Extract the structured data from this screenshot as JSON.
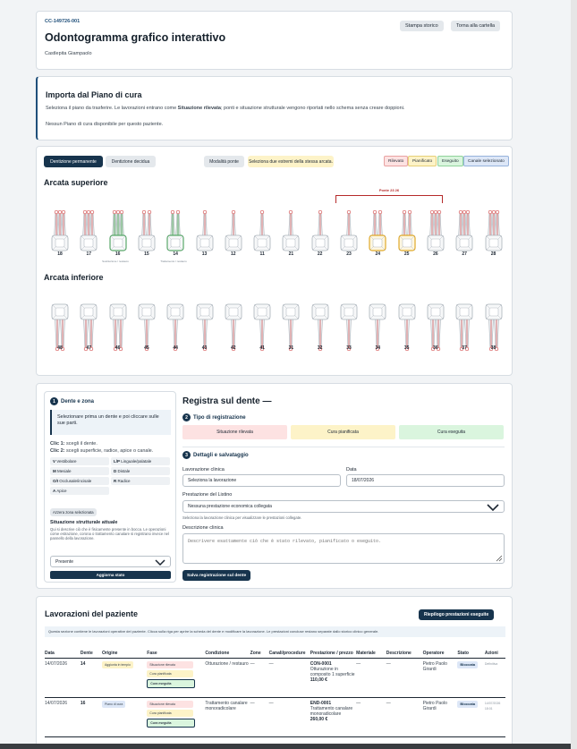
{
  "header": {
    "record_code": "CC-149726-001",
    "title": "Odontogramma grafico interattivo",
    "patient": "Castlepita Giampaolo",
    "btn_history": "Stampa storico",
    "btn_back": "Torna alla cartella"
  },
  "import": {
    "title": "Importa dal Piano di cura",
    "desc_before": "Seleziona il piano da trasferire. Le lavorazioni entrano come ",
    "desc_bold": "Situazione rilevata",
    "desc_after": "; ponti e situazione strutturale vengono riportati nello schema senza creare doppioni.",
    "empty": "Nessun Piano di cura disponibile per questo paziente."
  },
  "odontogram": {
    "tab_permanent": "Dentizione permanente",
    "tab_deciduous": "Dentizione decidua",
    "btn_bridge_mode": "Modalità ponte",
    "bridge_hint": "Seleziona due estremi della stessa arcata.",
    "legend": [
      {
        "label": "Rilevato",
        "bg": "#fde2e2",
        "border": "#e8a2a2"
      },
      {
        "label": "Pianificato",
        "bg": "#fdf3c8",
        "border": "#e6cf78"
      },
      {
        "label": "Eseguito",
        "bg": "#daf5de",
        "border": "#8fd39b"
      },
      {
        "label": "Canale selezionato",
        "bg": "#dde7f7",
        "border": "#97b3dc"
      }
    ],
    "upper_title": "Arcata superiore",
    "lower_title": "Arcata inferiore",
    "bridge_label": "Ponte 23 26",
    "upper_teeth": [
      "18",
      "17",
      "16",
      "15",
      "14",
      "13",
      "12",
      "11",
      "21",
      "22",
      "23",
      "24",
      "25",
      "26",
      "27",
      "28"
    ],
    "lower_teeth": [
      "48",
      "47",
      "46",
      "45",
      "44",
      "43",
      "42",
      "41",
      "31",
      "32",
      "33",
      "34",
      "35",
      "36",
      "37",
      "38"
    ],
    "upper_roots": [
      3,
      3,
      3,
      2,
      2,
      1,
      1,
      1,
      1,
      1,
      1,
      2,
      2,
      3,
      3,
      3
    ],
    "lower_roots": [
      2,
      2,
      2,
      1,
      1,
      1,
      1,
      1,
      1,
      1,
      1,
      1,
      1,
      2,
      2,
      2
    ],
    "upper_states": [
      "",
      "",
      "green",
      "",
      "green",
      "",
      "",
      "",
      "",
      "",
      "",
      "yellow",
      "yellow",
      "",
      "",
      ""
    ],
    "tooth_note_16": "Sostituzione / restauro",
    "tooth_note_14": "Trattamento / restauro"
  },
  "left_panel": {
    "title": "Dente e zona",
    "info": "Selezionare prima un dente e poi cliccare sulle sue parti.",
    "click1_label": "Clic 1:",
    "click1_text": " scegli il dente.",
    "click2_label": "Clic 2:",
    "click2_text": " scegli superficie, radice, apice o canale.",
    "zones": [
      {
        "key": "V",
        "label": "Vestibolare"
      },
      {
        "key": "L/P",
        "label": "Linguale/palatale"
      },
      {
        "key": "M",
        "label": "Mesiale"
      },
      {
        "key": "D",
        "label": "Distale"
      },
      {
        "key": "O/I",
        "label": "Occlusale/incisale"
      },
      {
        "key": "R",
        "label": "Radice"
      },
      {
        "key": "A",
        "label": "Apice"
      }
    ],
    "btn_reset_zone": "Azzera zona selezionata",
    "structural_title": "Situazione strutturale attuale",
    "structural_desc": "Qui si descrive ciò che è fisicamente presente in bocca. Le operazioni come estrazione, corona o trattamento canalare si registrano invece nel pannello della lavorazione.",
    "structural_value": "Presente",
    "btn_update": "Aggiorna stato"
  },
  "register": {
    "title": "Registra sul dente —",
    "section2": "Tipo di registrazione",
    "types": [
      {
        "label": "Situazione rilevata",
        "bg": "#fde2e2"
      },
      {
        "label": "Cura pianificata",
        "bg": "#fdf3c8"
      },
      {
        "label": "Cura eseguita",
        "bg": "#daf5de"
      }
    ],
    "section3": "Dettagli e salvataggio",
    "lbl_work": "Lavorazione clinica",
    "work_value": "Seleziona la lavorazione",
    "lbl_date": "Data",
    "date_value": "18/07/2026",
    "lbl_service": "Prestazione del Listino",
    "service_value": "Nessuna prestazione economica collegata",
    "service_hint": "Seleziona la lavorazione clinica per visualizzare le prestazioni collegate.",
    "lbl_desc": "Descrizione clinica",
    "desc_placeholder": "Descrivere esattamente ciò che è stato rilevato, pianificato o eseguito.",
    "btn_save": "Salva registrazione sul dente"
  },
  "works": {
    "title": "Lavorazioni del paziente",
    "btn_summary": "Riepilogo prestazioni eseguite",
    "info": "Questa sezione contiene le lavorazioni operative del paziente. Clicca sulla riga per aprire la scheda del dente e modificare la lavorazione. Le prestazioni concluse restano separate dallo storico clinico generale.",
    "columns": [
      "Data",
      "Dente",
      "Origine",
      "Fase",
      "Condizione",
      "Zone",
      "Canali/procedure",
      "Prestazione / prezzo",
      "Materiale",
      "Descrizione",
      "Operatore",
      "Stato",
      "Azioni"
    ],
    "rows": [
      {
        "date": "14/07/2026",
        "tooth": "14",
        "origin": "Aggiunta in tempio",
        "phase1": "Situazione rilevata",
        "phase2": "Cura pianificata",
        "phase3": "Cura eseguita",
        "condition": "Otturazione / restauro",
        "zones": "—",
        "canals": "—",
        "service_code": "CON-0001",
        "service_name": "Otturazione in composito 1 superficie",
        "price": "110,00 €",
        "material": "—",
        "description": "—",
        "operator": "Pietro Paolo Girardi",
        "status": "Bloccata",
        "action": "Definitiva"
      },
      {
        "date": "14/07/2026",
        "tooth": "16",
        "origin": "Piano di cura",
        "phase1": "Situazione rilevata",
        "phase2": "Cura pianificata",
        "phase3": "Cura eseguita",
        "condition": "Trattamento canalare monoradicolare",
        "zones": "—",
        "canals": "—",
        "service_code": "END-0001",
        "service_name": "Trattamento canalare monoradicolare",
        "price": "260,00 €",
        "material": "—",
        "description": "—",
        "operator": "Pietro Paolo Girardi",
        "status": "Bloccata",
        "action": "14/07/2026 18:01"
      }
    ]
  }
}
